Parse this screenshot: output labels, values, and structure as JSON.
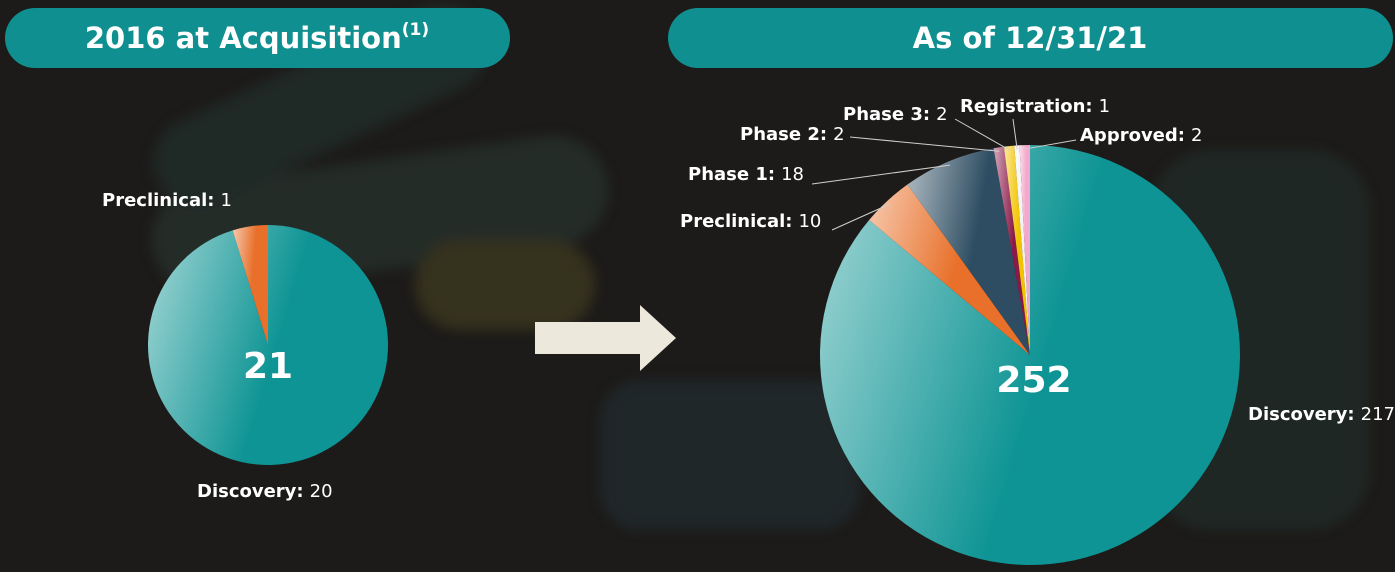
{
  "chart_data": [
    {
      "type": "pie",
      "title": "2016 at Acquisition",
      "title_note": "(1)",
      "total": 21,
      "categories": [
        "Discovery:",
        "Preclinical:"
      ],
      "values": [
        20,
        1
      ],
      "colors": [
        "#0e9494",
        "#e8702a"
      ]
    },
    {
      "type": "pie",
      "title": "As of 12/31/21",
      "total": 252,
      "categories": [
        "Discovery:",
        "Preclinical:",
        "Phase 1:",
        "Phase 2:",
        "Phase 3:",
        "Registration:",
        "Approved:"
      ],
      "values": [
        217,
        10,
        18,
        2,
        2,
        1,
        2
      ],
      "colors": [
        "#0e9494",
        "#e8702a",
        "#2e4d62",
        "#8a1848",
        "#f2c400",
        "#f2f2f2",
        "#f4a8cc"
      ]
    }
  ]
}
